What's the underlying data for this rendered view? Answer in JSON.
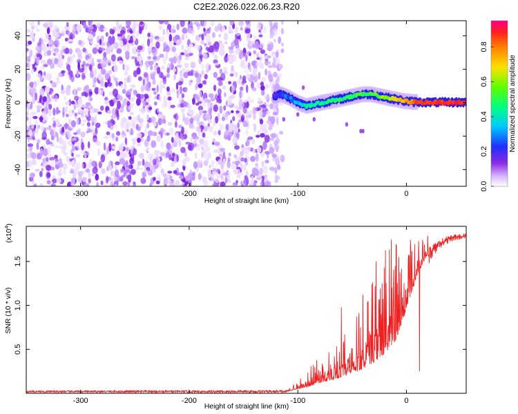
{
  "title": "C2E2.2026.022.06.23.R20",
  "chart_data": [
    {
      "type": "heatmap",
      "name": "spectrogram",
      "xlabel": "Height of straight line (km)",
      "ylabel": "Frequency (Hz)",
      "xlim": [
        -350,
        55
      ],
      "ylim": [
        -50,
        49
      ],
      "xticks": [
        -300,
        -200,
        -100,
        0
      ],
      "xtick_labels": [
        "-300",
        "-200",
        "-100",
        "0"
      ],
      "yticks": [
        -40,
        -20,
        0,
        20,
        40
      ],
      "ytick_labels": [
        "-40",
        "-20",
        "0",
        "20",
        "40"
      ],
      "noise_region_x": [
        -350,
        -120
      ],
      "signal_track": {
        "x": [
          -122,
          -115,
          -108,
          -100,
          -92,
          -85,
          -78,
          -70,
          -62,
          -55,
          -48,
          -40,
          -32,
          -25,
          -18,
          -10,
          -2,
          5,
          12,
          20,
          30,
          40,
          50,
          55
        ],
        "freq": [
          4,
          5,
          3,
          0,
          -2,
          -1,
          0,
          1,
          2,
          3,
          4,
          5,
          5,
          4,
          3,
          2,
          1,
          0.5,
          0.3,
          0.2,
          0.2,
          0.2,
          0.2,
          0.2
        ],
        "amplitude": [
          0.25,
          0.3,
          0.32,
          0.4,
          0.45,
          0.48,
          0.46,
          0.5,
          0.52,
          0.5,
          0.54,
          0.56,
          0.55,
          0.58,
          0.62,
          0.68,
          0.75,
          0.82,
          0.86,
          0.88,
          0.9,
          0.9,
          0.9,
          0.9
        ]
      },
      "colorbar": {
        "label": "Normalized spectral amplitude",
        "range": [
          0.0,
          0.95
        ],
        "ticks": [
          0.0,
          0.2,
          0.4,
          0.6,
          0.8
        ],
        "tick_labels": [
          "0.0",
          "0.2",
          "0.4",
          "0.6",
          "0.8"
        ],
        "colors": [
          "#ffffff",
          "#d9b8ff",
          "#8a2be2",
          "#2030ff",
          "#00c8ff",
          "#00ff80",
          "#60ff00",
          "#ffe000",
          "#ff8000",
          "#ff2020",
          "#ff0080"
        ]
      }
    },
    {
      "type": "line",
      "name": "snr",
      "xlabel": "Height of straight line (km)",
      "ylabel": "SNR (10 * v/v)",
      "multiplier_label": "(x10",
      "multiplier_exponent": "4",
      "multiplier_close": ")",
      "xlim": [
        -350,
        55
      ],
      "ylim": [
        0,
        1.9
      ],
      "xticks": [
        -300,
        -200,
        -100,
        0
      ],
      "xtick_labels": [
        "-300",
        "-200",
        "-100",
        "0"
      ],
      "yticks": [
        0.5,
        1.0,
        1.5
      ],
      "ytick_labels": [
        "0.5",
        "1.0",
        "1.5"
      ],
      "color": "#ee2222",
      "envelope": {
        "x": [
          -350,
          -110,
          -100,
          -90,
          -80,
          -70,
          -60,
          -50,
          -40,
          -30,
          -20,
          -10,
          0,
          10,
          20,
          30,
          40,
          55
        ],
        "base": [
          0.02,
          0.02,
          0.05,
          0.08,
          0.12,
          0.15,
          0.18,
          0.22,
          0.28,
          0.35,
          0.45,
          0.6,
          0.95,
          1.35,
          1.6,
          1.72,
          1.78,
          1.8
        ],
        "spread": [
          0.02,
          0.03,
          0.12,
          0.2,
          0.3,
          0.4,
          0.5,
          0.55,
          0.8,
          1.0,
          1.2,
          1.15,
          0.8,
          0.4,
          0.2,
          0.12,
          0.08,
          0.05
        ]
      },
      "peaks": [
        {
          "x": -60,
          "y": 0.98
        },
        {
          "x": -40,
          "y": 1.12
        },
        {
          "x": -28,
          "y": 1.5
        },
        {
          "x": -14,
          "y": 1.75
        },
        {
          "x": -7,
          "y": 1.55
        },
        {
          "x": 12,
          "y": 0.25
        },
        {
          "x": 15,
          "y": 1.7
        }
      ]
    }
  ]
}
